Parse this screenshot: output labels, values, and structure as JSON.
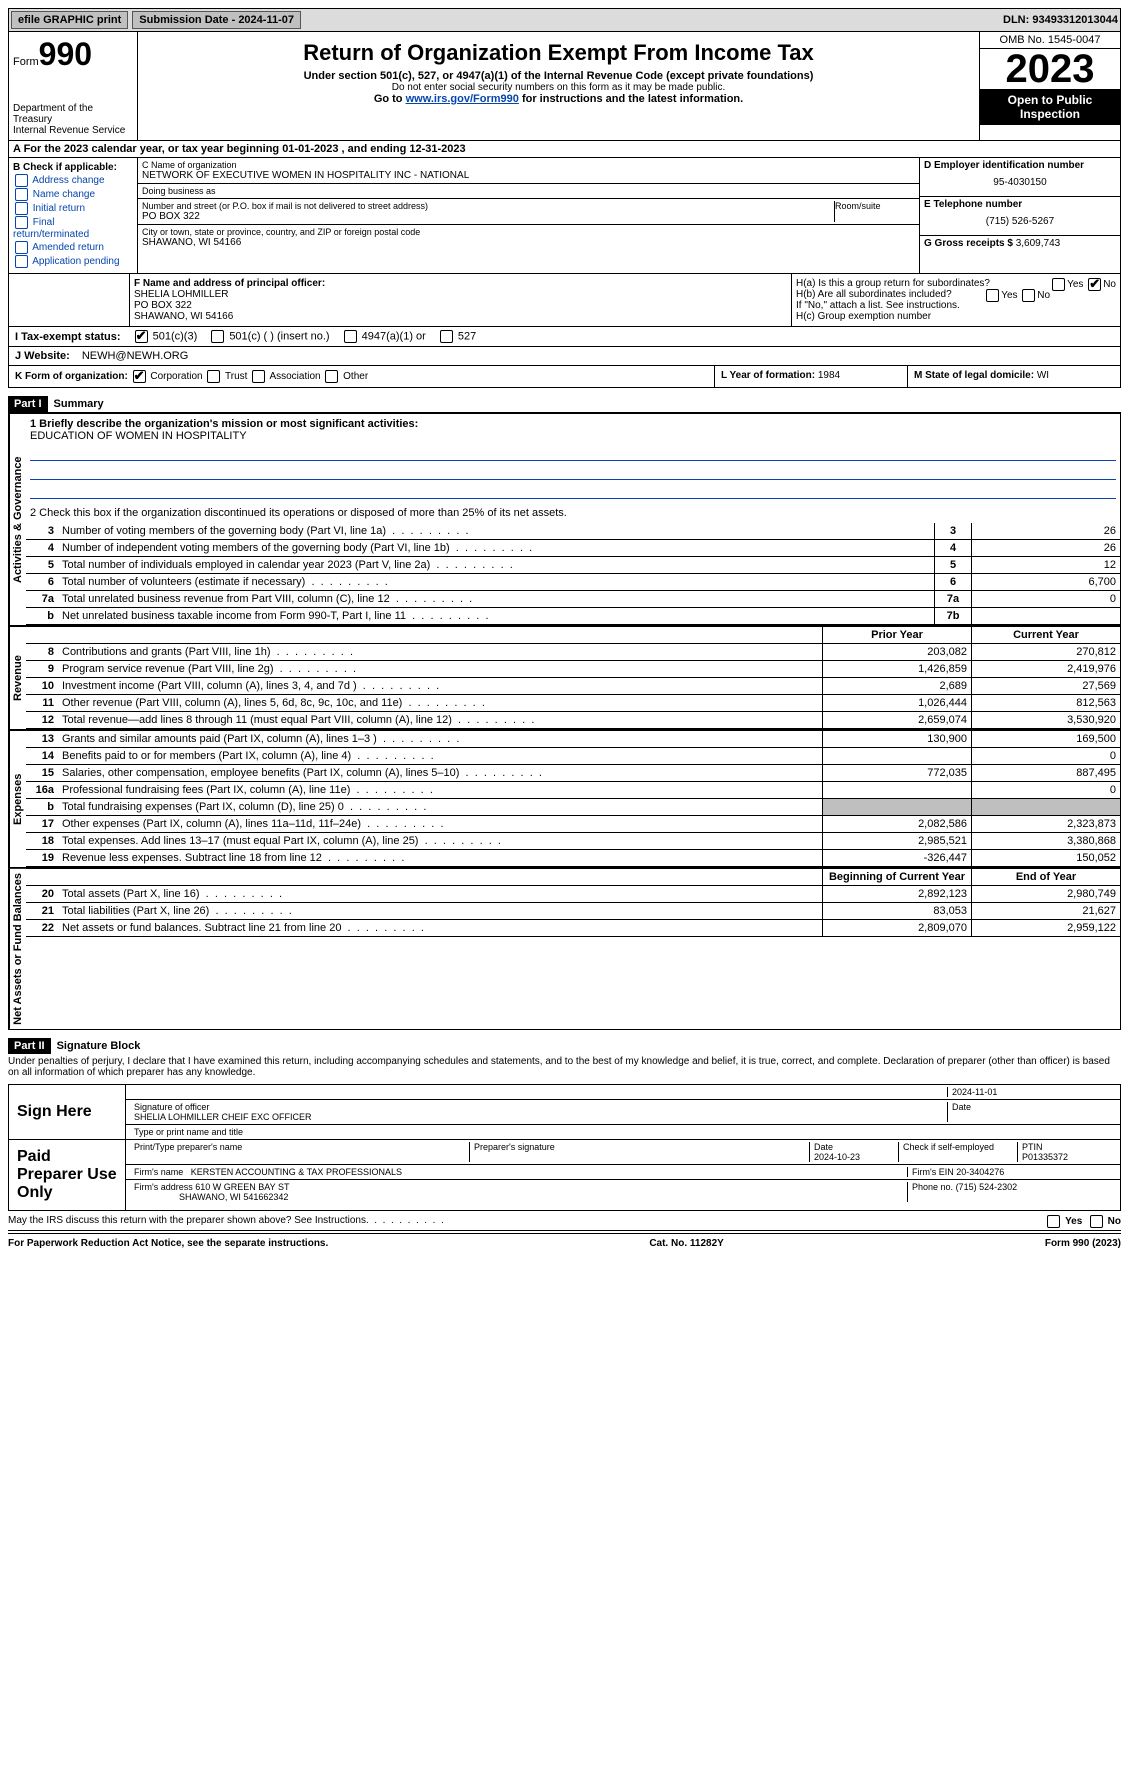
{
  "topbar": {
    "efile": "efile GRAPHIC print",
    "submission_label": "Submission Date - 2024-11-07",
    "dln": "DLN: 93493312013044"
  },
  "header": {
    "form_label": "Form",
    "form_num": "990",
    "dept": "Department of the Treasury\nInternal Revenue Service",
    "title": "Return of Organization Exempt From Income Tax",
    "subtitle": "Under section 501(c), 527, or 4947(a)(1) of the Internal Revenue Code (except private foundations)",
    "ssn_note": "Do not enter social security numbers on this form as it may be made public.",
    "goto": "Go to ",
    "goto_link": "www.irs.gov/Form990",
    "goto_suffix": " for instructions and the latest information.",
    "omb": "OMB No. 1545-0047",
    "year": "2023",
    "open": "Open to Public Inspection"
  },
  "row_a": "A For the 2023 calendar year, or tax year beginning 01-01-2023    , and ending 12-31-2023",
  "box_b": {
    "label": "B Check if applicable:",
    "opts": [
      "Address change",
      "Name change",
      "Initial return",
      "Final return/terminated",
      "Amended return",
      "Application pending"
    ]
  },
  "box_c": {
    "name_lbl": "C Name of organization",
    "name": "NETWORK OF EXECUTIVE WOMEN IN HOSPITALITY INC - NATIONAL",
    "dba_lbl": "Doing business as",
    "dba": "",
    "addr_lbl": "Number and street (or P.O. box if mail is not delivered to street address)",
    "room_lbl": "Room/suite",
    "addr": "PO BOX 322",
    "city_lbl": "City or town, state or province, country, and ZIP or foreign postal code",
    "city": "SHAWANO, WI  54166"
  },
  "box_d": {
    "lbl": "D Employer identification number",
    "val": "95-4030150"
  },
  "box_e": {
    "lbl": "E Telephone number",
    "val": "(715) 526-5267"
  },
  "box_g": {
    "lbl": "G Gross receipts $",
    "val": "3,609,743"
  },
  "box_f": {
    "lbl": "F  Name and address of principal officer:",
    "name": "SHELIA LOHMILLER",
    "addr1": "PO BOX 322",
    "addr2": "SHAWANO, WI  54166"
  },
  "box_h": {
    "a": "H(a)  Is this a group return for subordinates?",
    "b": "H(b)  Are all subordinates included?",
    "b_note": "If \"No,\" attach a list. See instructions.",
    "c": "H(c)  Group exemption number",
    "yes": "Yes",
    "no": "No"
  },
  "row_i": {
    "lbl": "I   Tax-exempt status:",
    "o1": "501(c)(3)",
    "o2": " 501(c) (  ) (insert no.)",
    "o3": " 4947(a)(1) or ",
    "o4": " 527"
  },
  "row_j": {
    "lbl": "J   Website:",
    "val": "NEWH@NEWH.ORG"
  },
  "row_k": {
    "lbl": "K Form of organization:",
    "o1": "Corporation",
    "o2": "Trust",
    "o3": "Association",
    "o4": "Other"
  },
  "row_l": {
    "lbl": "L Year of formation:",
    "val": "1984"
  },
  "row_m": {
    "lbl": "M State of legal domicile:",
    "val": "WI"
  },
  "part1": {
    "hdr": "Part I",
    "title": "Summary"
  },
  "mission_lbl": "1  Briefly describe the organization's mission or most significant activities:",
  "mission": "EDUCATION OF WOMEN IN HOSPITALITY",
  "line2": "2   Check this box        if the organization discontinued its operations or disposed of more than 25% of its net assets.",
  "sections": {
    "gov": "Activities & Governance",
    "rev": "Revenue",
    "exp": "Expenses",
    "net": "Net Assets or Fund Balances"
  },
  "gov_lines": [
    {
      "n": "3",
      "d": "Number of voting members of the governing body (Part VI, line 1a)",
      "box": "3",
      "v": "26"
    },
    {
      "n": "4",
      "d": "Number of independent voting members of the governing body (Part VI, line 1b)",
      "box": "4",
      "v": "26"
    },
    {
      "n": "5",
      "d": "Total number of individuals employed in calendar year 2023 (Part V, line 2a)",
      "box": "5",
      "v": "12"
    },
    {
      "n": "6",
      "d": "Total number of volunteers (estimate if necessary)",
      "box": "6",
      "v": "6,700"
    },
    {
      "n": "7a",
      "d": "Total unrelated business revenue from Part VIII, column (C), line 12",
      "box": "7a",
      "v": "0"
    },
    {
      "n": "b",
      "d": "Net unrelated business taxable income from Form 990-T, Part I, line 11",
      "box": "7b",
      "v": ""
    }
  ],
  "col_hdrs": {
    "prior": "Prior Year",
    "current": "Current Year",
    "boy": "Beginning of Current Year",
    "eoy": "End of Year"
  },
  "rev_lines": [
    {
      "n": "8",
      "d": "Contributions and grants (Part VIII, line 1h)",
      "p": "203,082",
      "c": "270,812"
    },
    {
      "n": "9",
      "d": "Program service revenue (Part VIII, line 2g)",
      "p": "1,426,859",
      "c": "2,419,976"
    },
    {
      "n": "10",
      "d": "Investment income (Part VIII, column (A), lines 3, 4, and 7d )",
      "p": "2,689",
      "c": "27,569"
    },
    {
      "n": "11",
      "d": "Other revenue (Part VIII, column (A), lines 5, 6d, 8c, 9c, 10c, and 11e)",
      "p": "1,026,444",
      "c": "812,563"
    },
    {
      "n": "12",
      "d": "Total revenue—add lines 8 through 11 (must equal Part VIII, column (A), line 12)",
      "p": "2,659,074",
      "c": "3,530,920"
    }
  ],
  "exp_lines": [
    {
      "n": "13",
      "d": "Grants and similar amounts paid (Part IX, column (A), lines 1–3 )",
      "p": "130,900",
      "c": "169,500"
    },
    {
      "n": "14",
      "d": "Benefits paid to or for members (Part IX, column (A), line 4)",
      "p": "",
      "c": "0"
    },
    {
      "n": "15",
      "d": "Salaries, other compensation, employee benefits (Part IX, column (A), lines 5–10)",
      "p": "772,035",
      "c": "887,495"
    },
    {
      "n": "16a",
      "d": "Professional fundraising fees (Part IX, column (A), line 11e)",
      "p": "",
      "c": "0"
    },
    {
      "n": "b",
      "d": "Total fundraising expenses (Part IX, column (D), line 25) 0",
      "p": "grey",
      "c": "grey"
    },
    {
      "n": "17",
      "d": "Other expenses (Part IX, column (A), lines 11a–11d, 11f–24e)",
      "p": "2,082,586",
      "c": "2,323,873"
    },
    {
      "n": "18",
      "d": "Total expenses. Add lines 13–17 (must equal Part IX, column (A), line 25)",
      "p": "2,985,521",
      "c": "3,380,868"
    },
    {
      "n": "19",
      "d": "Revenue less expenses. Subtract line 18 from line 12",
      "p": "-326,447",
      "c": "150,052"
    }
  ],
  "net_lines": [
    {
      "n": "20",
      "d": "Total assets (Part X, line 16)",
      "p": "2,892,123",
      "c": "2,980,749"
    },
    {
      "n": "21",
      "d": "Total liabilities (Part X, line 26)",
      "p": "83,053",
      "c": "21,627"
    },
    {
      "n": "22",
      "d": "Net assets or fund balances. Subtract line 21 from line 20",
      "p": "2,809,070",
      "c": "2,959,122"
    }
  ],
  "part2": {
    "hdr": "Part II",
    "title": "Signature Block"
  },
  "penalties": "Under penalties of perjury, I declare that I have examined this return, including accompanying schedules and statements, and to the best of my knowledge and belief, it is true, correct, and complete. Declaration of preparer (other than officer) is based on all information of which preparer has any knowledge.",
  "sign": {
    "here": "Sign Here",
    "date": "2024-11-01",
    "sig_lbl": "Signature of officer",
    "officer": "SHELIA LOHMILLER  CHEIF EXC OFFICER",
    "type_lbl": "Type or print name and title",
    "date_lbl": "Date"
  },
  "paid": {
    "title": "Paid Preparer Use Only",
    "name_lbl": "Print/Type preparer's name",
    "sig_lbl": "Preparer's signature",
    "date_lbl": "Date",
    "date": "2024-10-23",
    "check_lbl": "Check         if self-employed",
    "ptin_lbl": "PTIN",
    "ptin": "P01335372",
    "firm_name_lbl": "Firm's name",
    "firm_name": "KERSTEN ACCOUNTING & TAX PROFESSIONALS",
    "firm_ein_lbl": "Firm's EIN",
    "firm_ein": "20-3404276",
    "firm_addr_lbl": "Firm's address",
    "firm_addr": "610 W GREEN BAY ST",
    "firm_city": "SHAWANO, WI  541662342",
    "phone_lbl": "Phone no.",
    "phone": "(715) 524-2302"
  },
  "discuss": "May the IRS discuss this return with the preparer shown above? See Instructions.",
  "footer": {
    "left": "For Paperwork Reduction Act Notice, see the separate instructions.",
    "mid": "Cat. No. 11282Y",
    "right": "Form 990 (2023)"
  }
}
